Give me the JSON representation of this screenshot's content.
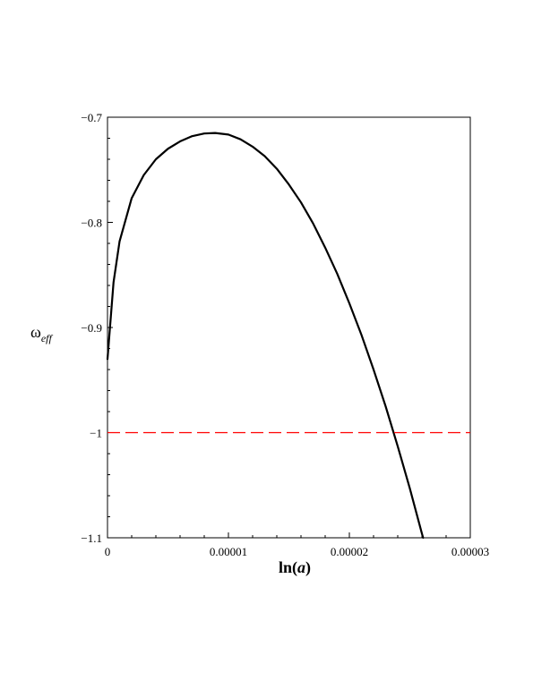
{
  "chart_data": {
    "type": "line",
    "xlabel": "ln(a)",
    "xlabel_parts": {
      "prefix": "ln(",
      "variable": "a",
      "suffix": ")"
    },
    "ylabel": "ωeff",
    "ylabel_parts": {
      "symbol": "ω",
      "subscript": "eff"
    },
    "xlim": [
      0,
      3e-05
    ],
    "ylim": [
      -1.1,
      -0.7
    ],
    "x_ticks": [
      {
        "value": 0,
        "label": "0"
      },
      {
        "value": 1e-05,
        "label": "0.00001"
      },
      {
        "value": 2e-05,
        "label": "0.00002"
      },
      {
        "value": 3e-05,
        "label": "0.00003"
      }
    ],
    "y_ticks": [
      {
        "value": -0.7,
        "label": "−0.7"
      },
      {
        "value": -0.8,
        "label": "−0.8"
      },
      {
        "value": -0.9,
        "label": "−0.9"
      },
      {
        "value": -1.0,
        "label": "−1"
      },
      {
        "value": -1.1,
        "label": "−1.1"
      }
    ],
    "grid": false,
    "frame": "box",
    "series": [
      {
        "style": "solid",
        "color": "#000000",
        "points": [
          {
            "x": 0,
            "y": -0.93
          },
          {
            "x": 5e-07,
            "y": -0.857
          },
          {
            "x": 1e-06,
            "y": -0.818
          },
          {
            "x": 2e-06,
            "y": -0.777
          },
          {
            "x": 3e-06,
            "y": -0.755
          },
          {
            "x": 4e-06,
            "y": -0.74
          },
          {
            "x": 5e-06,
            "y": -0.73
          },
          {
            "x": 6e-06,
            "y": -0.723
          },
          {
            "x": 7e-06,
            "y": -0.718
          },
          {
            "x": 8e-06,
            "y": -0.7155
          },
          {
            "x": 8.9e-06,
            "y": -0.715
          },
          {
            "x": 1e-05,
            "y": -0.7165
          },
          {
            "x": 1.1e-05,
            "y": -0.721
          },
          {
            "x": 1.2e-05,
            "y": -0.728
          },
          {
            "x": 1.3e-05,
            "y": -0.737
          },
          {
            "x": 1.4e-05,
            "y": -0.749
          },
          {
            "x": 1.5e-05,
            "y": -0.764
          },
          {
            "x": 1.6e-05,
            "y": -0.781
          },
          {
            "x": 1.7e-05,
            "y": -0.801
          },
          {
            "x": 1.8e-05,
            "y": -0.824
          },
          {
            "x": 1.9e-05,
            "y": -0.849
          },
          {
            "x": 2e-05,
            "y": -0.877
          },
          {
            "x": 2.1e-05,
            "y": -0.907
          },
          {
            "x": 2.2e-05,
            "y": -0.94
          },
          {
            "x": 2.3e-05,
            "y": -0.975
          },
          {
            "x": 2.4e-05,
            "y": -1.013
          },
          {
            "x": 2.5e-05,
            "y": -1.053
          },
          {
            "x": 2.6e-05,
            "y": -1.096
          },
          {
            "x": 2.61e-05,
            "y": -1.1
          }
        ]
      },
      {
        "style": "dashed",
        "color": "#ff0000",
        "points": [
          {
            "x": 0,
            "y": -1.0
          },
          {
            "x": 3e-05,
            "y": -1.0
          }
        ]
      }
    ]
  }
}
